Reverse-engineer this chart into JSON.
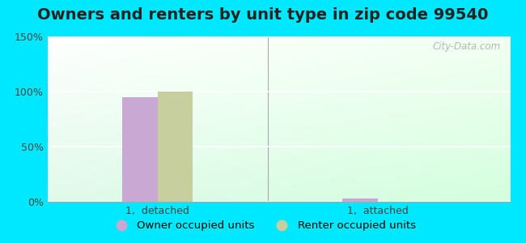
{
  "title": "Owners and renters by unit type in zip code 99540",
  "categories": [
    "1,  detached",
    "1,  attached"
  ],
  "series": [
    {
      "label": "Owner occupied units",
      "values": [
        95,
        3
      ],
      "color": "#c9a8d4"
    },
    {
      "label": "Renter occupied units",
      "values": [
        100,
        0
      ],
      "color": "#c8cf9e"
    }
  ],
  "ylim": [
    0,
    150
  ],
  "yticks": [
    0,
    50,
    100,
    150
  ],
  "ytick_labels": [
    "0%",
    "50%",
    "100%",
    "150%"
  ],
  "bar_width": 0.32,
  "group_positions": [
    1.0,
    3.0
  ],
  "background_color_outer": "#00e8ff",
  "title_fontsize": 14,
  "legend_fontsize": 9.5,
  "tick_fontsize": 9,
  "watermark": "City-Data.com"
}
